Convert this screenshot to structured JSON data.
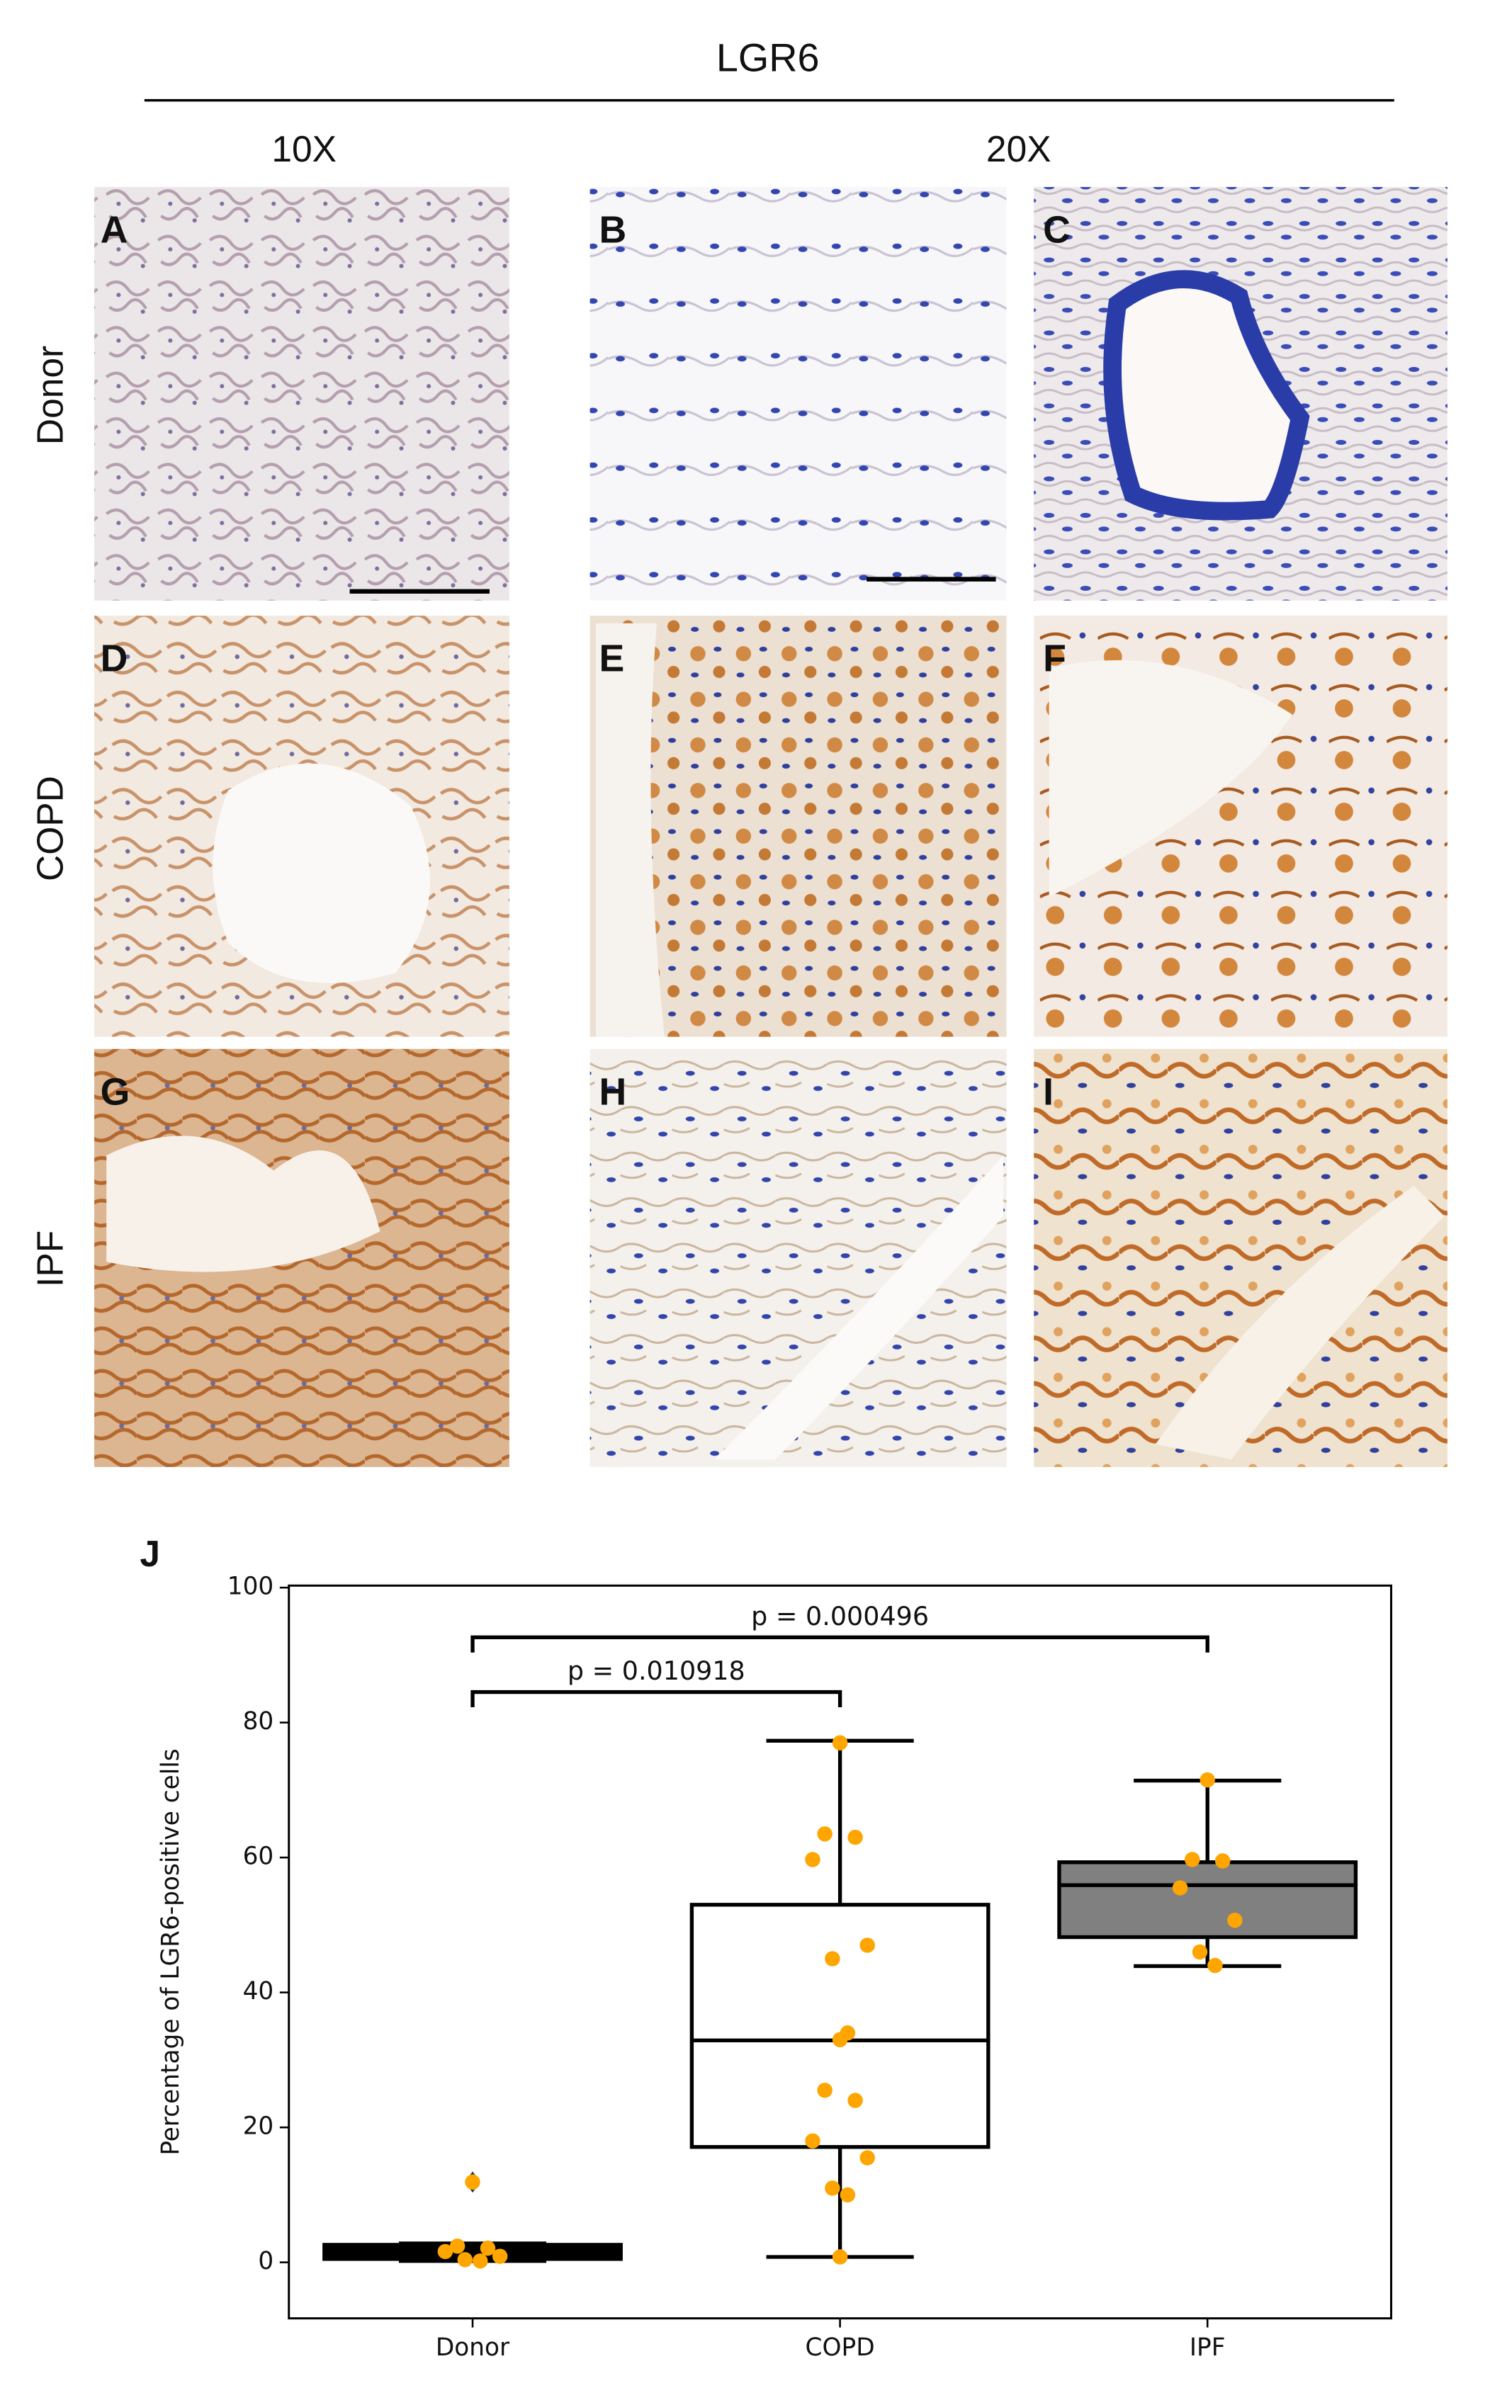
{
  "header": {
    "title": "LGR6",
    "magnifications": [
      "10X",
      "20X"
    ]
  },
  "row_labels": [
    "Donor",
    "COPD",
    "IPF"
  ],
  "panels": [
    "A",
    "B",
    "C",
    "D",
    "E",
    "F",
    "G",
    "H",
    "I"
  ],
  "chart_data": {
    "type": "boxplot",
    "panel_label": "J",
    "y_label": "Percentage of LGR6-positive cells",
    "categories": [
      "Donor",
      "COPD",
      "IPF"
    ],
    "boxes": [
      {
        "whislo": 0.2,
        "q1": 0.5,
        "med": 1.5,
        "q3": 2.6,
        "whishi": 2.8,
        "fliers": [
          11.9
        ]
      },
      {
        "whislo": 0.8,
        "q1": 17.1,
        "med": 32.9,
        "q3": 53,
        "whishi": 77.3,
        "fliers": []
      },
      {
        "whislo": 43.9,
        "q1": 48.2,
        "med": 55.9,
        "q3": 59.3,
        "whishi": 71.4,
        "fliers": []
      }
    ],
    "box_colors": [
      "#000000",
      "#ffffff",
      "#808080"
    ],
    "points": [
      [
        11.9,
        2.4,
        2.1,
        1.6,
        0.9,
        0.4,
        0.2
      ],
      [
        77,
        63.5,
        63,
        59.7,
        47,
        45,
        34,
        33,
        25.5,
        24,
        18,
        15.5,
        11,
        10,
        0.8
      ],
      [
        71.5,
        59.7,
        59.5,
        55.5,
        50.7,
        46,
        44
      ]
    ],
    "point_color": "#ffa500",
    "annotations": [
      "p = 0.010918",
      "p = 0.000496"
    ],
    "ylim": [
      -8.3,
      100.3
    ],
    "yticks": [
      0,
      20,
      40,
      60,
      80,
      100
    ]
  }
}
